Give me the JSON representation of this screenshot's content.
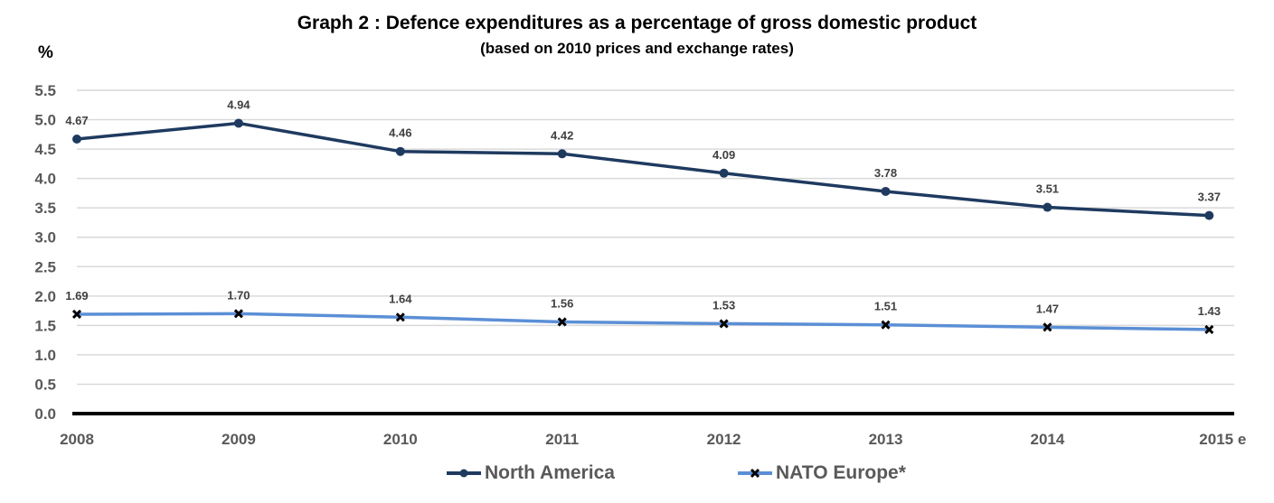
{
  "chart_data": {
    "type": "line",
    "title": "Graph 2 : Defence expenditures as a percentage of gross domestic product",
    "subtitle": "(based on 2010 prices and exchange rates)",
    "ylabel": "%",
    "xlabel": "",
    "categories": [
      "2008",
      "2009",
      "2010",
      "2011",
      "2012",
      "2013",
      "2014",
      "2015 e"
    ],
    "ylim": [
      0,
      5.5
    ],
    "yticks": [
      "0.0",
      "0.5",
      "1.0",
      "1.5",
      "2.0",
      "2.5",
      "3.0",
      "3.5",
      "4.0",
      "4.5",
      "5.0",
      "5.5"
    ],
    "grid": true,
    "legend_position": "bottom",
    "series": [
      {
        "name": "North America",
        "values": [
          4.67,
          4.94,
          4.46,
          4.42,
          4.09,
          3.78,
          3.51,
          3.37
        ],
        "labels": [
          "4.67",
          "4.94",
          "4.46",
          "4.42",
          "4.09",
          "3.78",
          "3.51",
          "3.37"
        ],
        "color": "#1f3a5f",
        "marker": "circle"
      },
      {
        "name": "NATO Europe*",
        "values": [
          1.69,
          1.7,
          1.64,
          1.56,
          1.53,
          1.51,
          1.47,
          1.43
        ],
        "labels": [
          "1.69",
          "1.70",
          "1.64",
          "1.56",
          "1.53",
          "1.51",
          "1.47",
          "1.43"
        ],
        "color": "#5b8fd6",
        "marker": "x"
      }
    ]
  }
}
